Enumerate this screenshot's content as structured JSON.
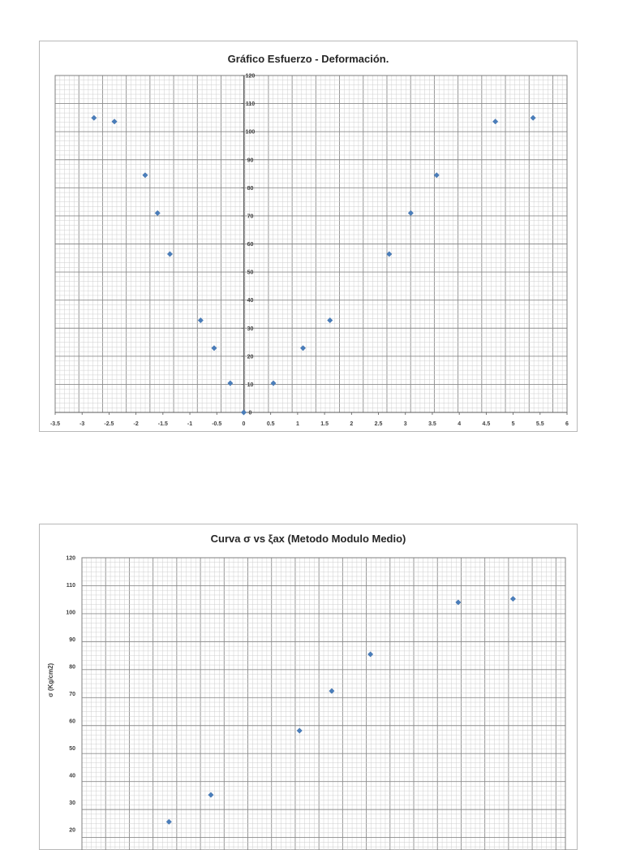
{
  "chart_data": [
    {
      "type": "scatter",
      "title": "Gráfico Esfuerzo - Deformación.",
      "xlabel": "",
      "ylabel": "",
      "xlim": [
        -3.5,
        6
      ],
      "ylim": [
        0,
        120
      ],
      "x_ticks": [
        "-3.5",
        "-3",
        "-2.5",
        "-2",
        "-1.5",
        "-1",
        "-0.5",
        "0",
        "0.5",
        "1",
        "1.5",
        "2",
        "2.5",
        "3",
        "3.5",
        "4",
        "4.5",
        "5",
        "5.5",
        "6"
      ],
      "y_ticks": [
        "0",
        "10",
        "20",
        "30",
        "40",
        "50",
        "60",
        "70",
        "80",
        "90",
        "100",
        "110",
        "120"
      ],
      "grid": true,
      "marker_color": "#4a7ebb",
      "points": [
        {
          "x": -2.78,
          "y": 104.9
        },
        {
          "x": -2.4,
          "y": 103.6
        },
        {
          "x": -1.83,
          "y": 84.5
        },
        {
          "x": -1.6,
          "y": 71.0
        },
        {
          "x": -1.37,
          "y": 56.4
        },
        {
          "x": -0.8,
          "y": 32.8
        },
        {
          "x": -0.55,
          "y": 22.9
        },
        {
          "x": -0.25,
          "y": 10.4
        },
        {
          "x": 0.0,
          "y": 0.0
        },
        {
          "x": 0.55,
          "y": 10.4
        },
        {
          "x": 1.1,
          "y": 22.9
        },
        {
          "x": 1.6,
          "y": 32.8
        },
        {
          "x": 2.7,
          "y": 56.4
        },
        {
          "x": 3.1,
          "y": 71.0
        },
        {
          "x": 3.58,
          "y": 84.5
        },
        {
          "x": 4.67,
          "y": 103.6
        },
        {
          "x": 5.37,
          "y": 104.9
        }
      ]
    },
    {
      "type": "scatter",
      "title": "Curva σ vs ξax (Metodo  Modulo Medio)",
      "xlabel": "",
      "ylabel": "σ (Kg/cm2)",
      "xlim": [
        0,
        6
      ],
      "ylim": [
        0,
        120
      ],
      "y_ticks": [
        "20",
        "30",
        "40",
        "50",
        "60",
        "70",
        "80",
        "90",
        "100",
        "110",
        "120"
      ],
      "grid": true,
      "marker_color": "#4a7ebb",
      "points": [
        {
          "x": 1.08,
          "y": 22.9
        },
        {
          "x": 1.6,
          "y": 32.8
        },
        {
          "x": 2.7,
          "y": 56.4
        },
        {
          "x": 3.1,
          "y": 71.0
        },
        {
          "x": 3.58,
          "y": 84.5
        },
        {
          "x": 4.67,
          "y": 103.6
        },
        {
          "x": 5.35,
          "y": 104.9
        }
      ]
    }
  ]
}
